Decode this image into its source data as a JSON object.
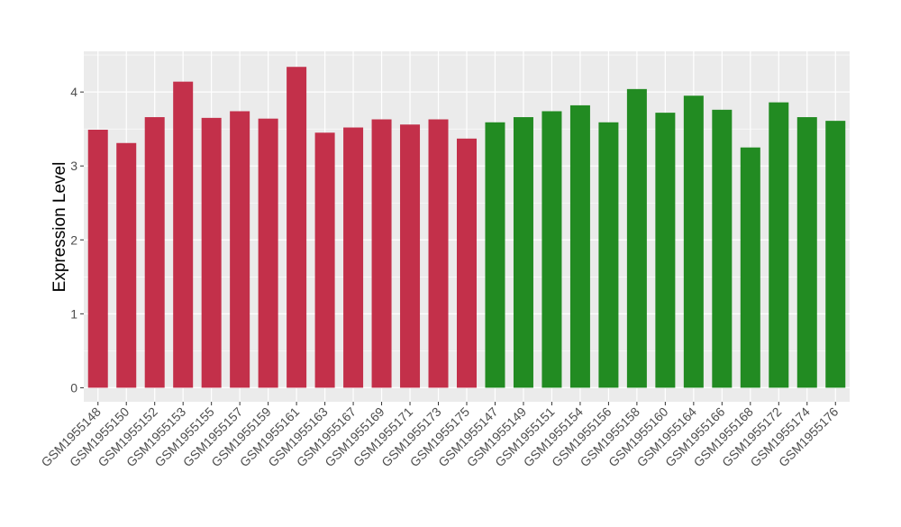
{
  "chart_data": {
    "type": "bar",
    "title": "",
    "xlabel": "",
    "ylabel": "Expression Level",
    "ylim": [
      -0.19,
      4.55
    ],
    "yticks": [
      0,
      1,
      2,
      3,
      4
    ],
    "grid": true,
    "legend": "none",
    "colors": {
      "group1": "#C3304A",
      "group2": "#228B22",
      "panel": "#EBEBEB",
      "grid": "#FFFFFF"
    },
    "categories": [
      "GSM1955148",
      "GSM1955150",
      "GSM1955152",
      "GSM1955153",
      "GSM1955155",
      "GSM1955157",
      "GSM1955159",
      "GSM1955161",
      "GSM1955163",
      "GSM1955167",
      "GSM1955169",
      "GSM1955171",
      "GSM1955173",
      "GSM1955175",
      "GSM1955147",
      "GSM1955149",
      "GSM1955151",
      "GSM1955154",
      "GSM1955156",
      "GSM1955158",
      "GSM1955160",
      "GSM1955164",
      "GSM1955166",
      "GSM1955168",
      "GSM1955172",
      "GSM1955174",
      "GSM1955176"
    ],
    "values": [
      3.49,
      3.31,
      3.66,
      4.14,
      3.65,
      3.74,
      3.64,
      4.34,
      3.45,
      3.52,
      3.63,
      3.56,
      3.63,
      3.37,
      3.59,
      3.66,
      3.74,
      3.82,
      3.59,
      4.04,
      3.72,
      3.95,
      3.76,
      3.25,
      3.86,
      3.66,
      3.61
    ],
    "groups": [
      1,
      1,
      1,
      1,
      1,
      1,
      1,
      1,
      1,
      1,
      1,
      1,
      1,
      1,
      2,
      2,
      2,
      2,
      2,
      2,
      2,
      2,
      2,
      2,
      2,
      2,
      2
    ]
  }
}
